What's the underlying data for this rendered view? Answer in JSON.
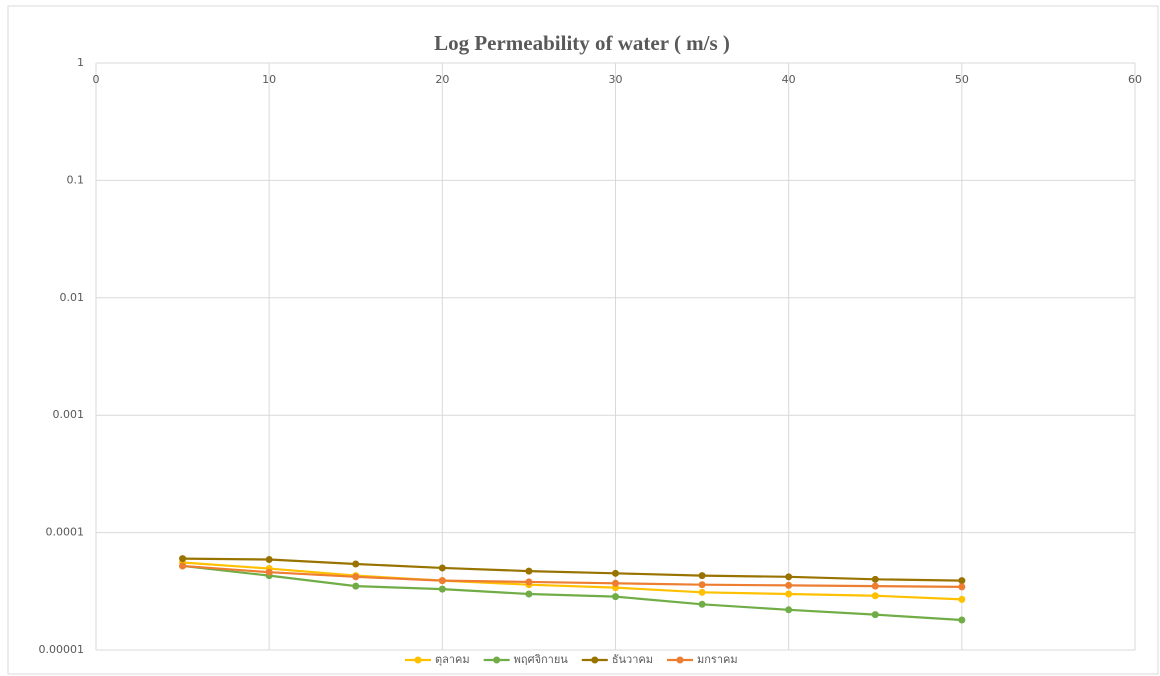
{
  "chart_data": {
    "type": "line",
    "title": "Log Permeability of water ( m/s )",
    "x": [
      5,
      10,
      15,
      20,
      25,
      30,
      35,
      40,
      45,
      50
    ],
    "series": [
      {
        "name": "ตุลาคม",
        "color": "#FFC000",
        "values": [
          5.56e-05,
          4.94e-05,
          4.3e-05,
          3.9e-05,
          3.6e-05,
          3.4e-05,
          3.1e-05,
          3e-05,
          2.9e-05,
          2.7e-05
        ]
      },
      {
        "name": "พฤศจิกายน",
        "color": "#70AD47",
        "values": [
          5.2e-05,
          4.3e-05,
          3.5e-05,
          3.3e-05,
          3e-05,
          2.85e-05,
          2.45e-05,
          2.2e-05,
          2e-05,
          1.8e-05
        ]
      },
      {
        "name": "ธันวาคม",
        "color": "#997300",
        "values": [
          6e-05,
          5.9e-05,
          5.4e-05,
          5e-05,
          4.7e-05,
          4.5e-05,
          4.3e-05,
          4.2e-05,
          4e-05,
          3.9e-05
        ]
      },
      {
        "name": "มกราคม",
        "color": "#ED7D31",
        "values": [
          5.2e-05,
          4.6e-05,
          4.2e-05,
          3.9e-05,
          3.8e-05,
          3.7e-05,
          3.6e-05,
          3.55e-05,
          3.5e-05,
          3.45e-05
        ]
      }
    ],
    "xlim": [
      0,
      60
    ],
    "xticks": [
      0,
      10,
      20,
      30,
      40,
      50,
      60
    ],
    "ylim": [
      1e-05,
      1
    ],
    "yticks": [
      1,
      0.1,
      0.01,
      0.001,
      0.0001,
      1e-05
    ],
    "log_y": true,
    "grid": true,
    "legend": "bottom"
  }
}
